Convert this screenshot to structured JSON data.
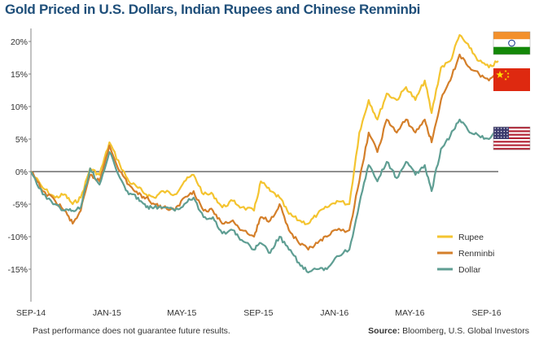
{
  "title": "Gold Priced in U.S. Dollars, Indian Rupees and Chinese Renminbi",
  "footnote": "Past performance does not guarantee future results.",
  "source_label": "Source:",
  "source_text": "Bloomberg, U.S. Global Investors",
  "flags": [
    {
      "name": "india-flag-icon",
      "series": "Rupee"
    },
    {
      "name": "china-flag-icon",
      "series": "Renminbi"
    },
    {
      "name": "usa-flag-icon",
      "series": "Dollar"
    }
  ],
  "chart_data": {
    "type": "line",
    "title": "Gold Priced in U.S. Dollars, Indian Rupees and Chinese Renminbi",
    "xlabel": "",
    "ylabel": "",
    "x_range": [
      "2014-09-01",
      "2016-09-20"
    ],
    "x_ticks": [
      {
        "date": "2014-09-01",
        "label": "SEP-14"
      },
      {
        "date": "2015-01-01",
        "label": "JAN-15"
      },
      {
        "date": "2015-05-01",
        "label": "MAY-15"
      },
      {
        "date": "2015-09-01",
        "label": "SEP-15"
      },
      {
        "date": "2016-01-01",
        "label": "JAN-16"
      },
      {
        "date": "2016-05-01",
        "label": "MAY-16"
      },
      {
        "date": "2016-09-01",
        "label": "SEP-16"
      }
    ],
    "ylim": [
      -20,
      22
    ],
    "y_ticks": [
      {
        "value": 20,
        "label": "20%"
      },
      {
        "value": 15,
        "label": "15%"
      },
      {
        "value": 10,
        "label": "10%"
      },
      {
        "value": 5,
        "label": "5%"
      },
      {
        "value": 0,
        "label": "0%"
      },
      {
        "value": -5,
        "label": "-5%"
      },
      {
        "value": -10,
        "label": "-10%"
      },
      {
        "value": -15,
        "label": "-15%"
      }
    ],
    "grid": false,
    "zero_line": true,
    "legend_position": "bottom-right",
    "x": [
      "2014-09-01",
      "2014-09-20",
      "2014-10-10",
      "2014-10-25",
      "2014-11-07",
      "2014-11-20",
      "2014-12-05",
      "2014-12-20",
      "2015-01-05",
      "2015-01-22",
      "2015-02-05",
      "2015-02-20",
      "2015-03-05",
      "2015-03-18",
      "2015-04-01",
      "2015-04-20",
      "2015-05-05",
      "2015-05-20",
      "2015-06-05",
      "2015-06-20",
      "2015-07-05",
      "2015-07-22",
      "2015-08-05",
      "2015-08-25",
      "2015-09-05",
      "2015-09-20",
      "2015-10-05",
      "2015-10-20",
      "2015-11-05",
      "2015-11-20",
      "2015-12-05",
      "2015-12-20",
      "2016-01-05",
      "2016-01-25",
      "2016-02-10",
      "2016-02-25",
      "2016-03-10",
      "2016-03-25",
      "2016-04-10",
      "2016-04-25",
      "2016-05-10",
      "2016-05-25",
      "2016-06-05",
      "2016-06-20",
      "2016-07-05",
      "2016-07-20",
      "2016-08-05",
      "2016-08-20",
      "2016-09-05",
      "2016-09-20"
    ],
    "series": [
      {
        "name": "Rupee",
        "color": "#f4c430",
        "values": [
          0,
          -2.5,
          -4,
          -3.5,
          -5,
          -4,
          0.5,
          -0.5,
          4.5,
          1,
          -1.5,
          -2.5,
          -3.5,
          -4,
          -3,
          -3.5,
          -1.5,
          -0.5,
          -3.5,
          -3.5,
          -5.5,
          -4.5,
          -5.5,
          -6,
          -1.5,
          -3,
          -4,
          -6.5,
          -7.5,
          -8,
          -6.5,
          -5.5,
          -4.5,
          -5,
          6,
          11,
          8,
          12,
          11,
          13,
          11,
          14,
          9,
          16,
          17,
          21,
          19,
          17,
          16,
          17
        ]
      },
      {
        "name": "Renminbi",
        "color": "#d47f2a",
        "values": [
          0,
          -3,
          -4.5,
          -6,
          -8,
          -6,
          -0.5,
          -1.5,
          4,
          0,
          -2,
          -3.5,
          -4,
          -5,
          -5.5,
          -6,
          -4,
          -3,
          -6,
          -6,
          -8,
          -7.5,
          -9,
          -10,
          -7,
          -7.5,
          -5,
          -9,
          -11,
          -12,
          -11,
          -10,
          -9,
          -9,
          -1.5,
          6,
          3,
          8,
          6,
          8,
          6,
          8,
          4.5,
          11,
          14,
          18,
          16,
          15,
          14,
          15.5
        ]
      },
      {
        "name": "Dollar",
        "color": "#5f9e93",
        "values": [
          0,
          -3.5,
          -5,
          -6,
          -6,
          -5.5,
          0.5,
          -2,
          3,
          -1,
          -3.5,
          -4,
          -5.5,
          -5.5,
          -5.5,
          -6,
          -5,
          -4,
          -7,
          -7,
          -9.5,
          -9,
          -10.5,
          -12,
          -11,
          -12.5,
          -10,
          -12,
          -14,
          -15.5,
          -15,
          -15,
          -13,
          -12,
          -5,
          1,
          -1.5,
          1.5,
          -1,
          1.5,
          -0.5,
          1,
          -3,
          3.5,
          5.5,
          8,
          6,
          5.5,
          5,
          6.5
        ]
      }
    ]
  }
}
